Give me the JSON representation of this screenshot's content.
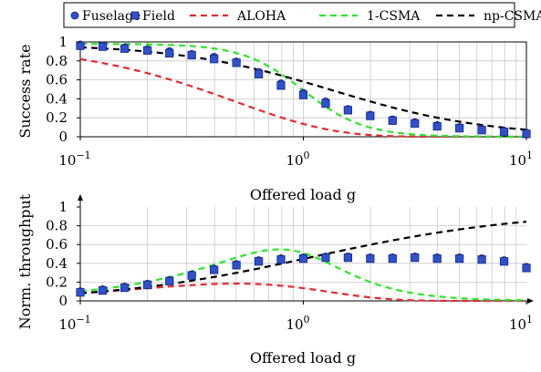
{
  "legend": {
    "entries": [
      {
        "key": "fuselage",
        "label": "Fuselage",
        "marker": "circle",
        "color": "#2f50cf"
      },
      {
        "key": "field",
        "label": "Field",
        "marker": "square",
        "color": "#2f50cf"
      },
      {
        "key": "aloha",
        "label": "ALOHA",
        "marker": "dash",
        "color": "#e8282d"
      },
      {
        "key": "csma1",
        "label": "1-CSMA",
        "marker": "dash",
        "color": "#2ae826"
      },
      {
        "key": "npcsma",
        "label": "np-CSMA",
        "marker": "dash",
        "color": "#000000"
      }
    ]
  },
  "chart_data": [
    {
      "type": "line",
      "ylabel": "Success rate",
      "xlabel": "Offered load g",
      "xscale": "log",
      "xlim": [
        0.1,
        10
      ],
      "ylim": [
        0,
        1
      ],
      "grid": true,
      "legend_position": "top",
      "x_tick_labels": [
        {
          "base": "10",
          "exp": "−1"
        },
        {
          "base": "10",
          "exp": "0"
        },
        {
          "base": "10",
          "exp": "1"
        }
      ],
      "y_tick_labels": [
        "0",
        "0.2",
        "0.4",
        "0.6",
        "0.8",
        "1"
      ],
      "x": [
        0.1,
        0.126,
        0.158,
        0.2,
        0.251,
        0.316,
        0.398,
        0.501,
        0.631,
        0.794,
        1.0,
        1.259,
        1.585,
        1.995,
        2.512,
        3.162,
        3.981,
        5.012,
        6.31,
        7.943,
        10.0
      ],
      "series": [
        {
          "name": "Fuselage",
          "style": "circle",
          "color": "#2f50cf",
          "values": [
            0.97,
            0.96,
            0.94,
            0.92,
            0.9,
            0.87,
            0.84,
            0.79,
            0.68,
            0.56,
            0.46,
            0.37,
            0.29,
            0.23,
            0.18,
            0.15,
            0.12,
            0.1,
            0.08,
            0.06,
            0.04
          ]
        },
        {
          "name": "Field",
          "style": "square",
          "color": "#2f50cf",
          "values": [
            0.96,
            0.95,
            0.93,
            0.91,
            0.88,
            0.86,
            0.82,
            0.78,
            0.66,
            0.54,
            0.44,
            0.35,
            0.28,
            0.22,
            0.17,
            0.14,
            0.11,
            0.09,
            0.07,
            0.05,
            0.03
          ]
        }
      ],
      "curves": [
        {
          "name": "ALOHA",
          "style": "dashed",
          "color": "#e8282d",
          "formula": "aloha"
        },
        {
          "name": "1-CSMA",
          "style": "dashed",
          "color": "#2ae826",
          "formula": "csma1"
        },
        {
          "name": "np-CSMA",
          "style": "dashed",
          "color": "#000000",
          "formula": "npcsma"
        }
      ]
    },
    {
      "type": "line",
      "ylabel": "Norm. throughput",
      "xlabel": "Offered load g",
      "xscale": "log",
      "xlim": [
        0.1,
        10
      ],
      "ylim": [
        0,
        1
      ],
      "grid": true,
      "x_tick_labels": [
        {
          "base": "10",
          "exp": "−1"
        },
        {
          "base": "10",
          "exp": "0"
        },
        {
          "base": "10",
          "exp": "1"
        }
      ],
      "y_tick_labels": [
        "0",
        "0.2",
        "0.4",
        "0.6",
        "0.8",
        "1"
      ],
      "x": [
        0.1,
        0.126,
        0.158,
        0.2,
        0.251,
        0.316,
        0.398,
        0.501,
        0.631,
        0.794,
        1.0,
        1.259,
        1.585,
        1.995,
        2.512,
        3.162,
        3.981,
        5.012,
        6.31,
        7.943,
        10.0
      ],
      "series": [
        {
          "name": "Fuselage",
          "style": "circle",
          "color": "#2f50cf",
          "values": [
            0.1,
            0.12,
            0.15,
            0.18,
            0.22,
            0.28,
            0.34,
            0.39,
            0.43,
            0.45,
            0.46,
            0.47,
            0.47,
            0.46,
            0.46,
            0.47,
            0.46,
            0.46,
            0.45,
            0.43,
            0.36
          ]
        },
        {
          "name": "Field",
          "style": "square",
          "color": "#2f50cf",
          "values": [
            0.09,
            0.11,
            0.14,
            0.17,
            0.21,
            0.27,
            0.33,
            0.38,
            0.42,
            0.44,
            0.45,
            0.46,
            0.46,
            0.45,
            0.45,
            0.46,
            0.45,
            0.45,
            0.44,
            0.42,
            0.35
          ]
        }
      ],
      "curves": [
        {
          "name": "ALOHA",
          "style": "dashed",
          "color": "#e8282d",
          "formula": "aloha_thr"
        },
        {
          "name": "1-CSMA",
          "style": "dashed",
          "color": "#2ae826",
          "formula": "csma1_thr"
        },
        {
          "name": "np-CSMA",
          "style": "dashed",
          "color": "#000000",
          "formula": "npcsma_thr"
        }
      ]
    }
  ]
}
